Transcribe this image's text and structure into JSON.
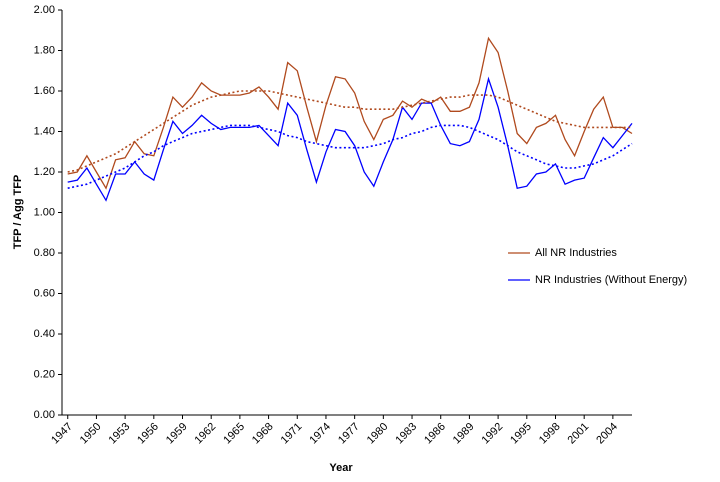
{
  "chart_data": {
    "type": "line",
    "x_label": "Year",
    "y_label": "TFP / Agg TFP",
    "x": [
      1947,
      1948,
      1949,
      1950,
      1951,
      1952,
      1953,
      1954,
      1955,
      1956,
      1957,
      1958,
      1959,
      1960,
      1961,
      1962,
      1963,
      1964,
      1965,
      1966,
      1967,
      1968,
      1969,
      1970,
      1971,
      1972,
      1973,
      1974,
      1975,
      1976,
      1977,
      1978,
      1979,
      1980,
      1981,
      1982,
      1983,
      1984,
      1985,
      1986,
      1987,
      1988,
      1989,
      1990,
      1991,
      1992,
      1993,
      1994,
      1995,
      1996,
      1997,
      1998,
      1999,
      2000,
      2001,
      2002,
      2003,
      2004,
      2005,
      2006
    ],
    "series": [
      {
        "name": "All NR Industries",
        "color": "#b04a1e",
        "style": "solid",
        "values": [
          1.19,
          1.2,
          1.28,
          1.2,
          1.12,
          1.26,
          1.27,
          1.35,
          1.29,
          1.28,
          1.42,
          1.57,
          1.52,
          1.57,
          1.64,
          1.6,
          1.58,
          1.58,
          1.58,
          1.59,
          1.62,
          1.57,
          1.51,
          1.74,
          1.7,
          1.52,
          1.35,
          1.53,
          1.67,
          1.66,
          1.59,
          1.45,
          1.36,
          1.46,
          1.48,
          1.55,
          1.52,
          1.56,
          1.54,
          1.57,
          1.5,
          1.5,
          1.52,
          1.64,
          1.86,
          1.79,
          1.6,
          1.39,
          1.34,
          1.42,
          1.44,
          1.48,
          1.36,
          1.28,
          1.4,
          1.51,
          1.57,
          1.42,
          1.42,
          1.39
        ]
      },
      {
        "name": "NR Industries (Without Energy)",
        "color": "#0000ff",
        "style": "solid",
        "values": [
          1.15,
          1.16,
          1.22,
          1.14,
          1.06,
          1.19,
          1.19,
          1.25,
          1.19,
          1.16,
          1.31,
          1.45,
          1.39,
          1.43,
          1.48,
          1.44,
          1.41,
          1.42,
          1.42,
          1.42,
          1.43,
          1.38,
          1.33,
          1.54,
          1.48,
          1.31,
          1.15,
          1.3,
          1.41,
          1.4,
          1.33,
          1.2,
          1.13,
          1.25,
          1.36,
          1.52,
          1.46,
          1.54,
          1.54,
          1.43,
          1.34,
          1.33,
          1.35,
          1.46,
          1.66,
          1.52,
          1.33,
          1.12,
          1.13,
          1.19,
          1.2,
          1.24,
          1.14,
          1.16,
          1.17,
          1.27,
          1.37,
          1.32,
          1.38,
          1.44
        ]
      },
      {
        "color": "#b04a1e",
        "style": "dotted",
        "values": [
          1.2,
          1.21,
          1.23,
          1.25,
          1.27,
          1.29,
          1.32,
          1.35,
          1.38,
          1.41,
          1.44,
          1.47,
          1.5,
          1.53,
          1.55,
          1.57,
          1.58,
          1.59,
          1.6,
          1.6,
          1.6,
          1.6,
          1.59,
          1.58,
          1.57,
          1.56,
          1.55,
          1.54,
          1.53,
          1.52,
          1.52,
          1.51,
          1.51,
          1.51,
          1.51,
          1.52,
          1.53,
          1.54,
          1.55,
          1.56,
          1.57,
          1.57,
          1.58,
          1.58,
          1.58,
          1.57,
          1.55,
          1.53,
          1.51,
          1.49,
          1.47,
          1.45,
          1.44,
          1.43,
          1.42,
          1.42,
          1.42,
          1.42,
          1.42,
          1.42
        ]
      },
      {
        "color": "#0000ff",
        "style": "dotted",
        "values": [
          1.12,
          1.13,
          1.14,
          1.16,
          1.18,
          1.2,
          1.22,
          1.25,
          1.28,
          1.3,
          1.33,
          1.35,
          1.37,
          1.39,
          1.4,
          1.41,
          1.42,
          1.43,
          1.43,
          1.43,
          1.42,
          1.41,
          1.4,
          1.38,
          1.37,
          1.35,
          1.34,
          1.33,
          1.32,
          1.32,
          1.32,
          1.32,
          1.33,
          1.34,
          1.36,
          1.37,
          1.39,
          1.4,
          1.42,
          1.43,
          1.43,
          1.43,
          1.42,
          1.4,
          1.38,
          1.36,
          1.33,
          1.3,
          1.28,
          1.26,
          1.24,
          1.23,
          1.22,
          1.22,
          1.23,
          1.24,
          1.26,
          1.28,
          1.31,
          1.34
        ]
      }
    ],
    "xlim": [
      1946.4,
      2006
    ],
    "xticks": [
      1947,
      1950,
      1953,
      1956,
      1959,
      1962,
      1965,
      1968,
      1971,
      1974,
      1977,
      1980,
      1983,
      1986,
      1989,
      1992,
      1995,
      1998,
      2001,
      2004
    ],
    "ylim": [
      0,
      2
    ],
    "yticks": [
      {
        "value": 0,
        "label": "0.00"
      },
      {
        "value": 0.2,
        "label": "0.20"
      },
      {
        "value": 0.4,
        "label": "0.40"
      },
      {
        "value": 0.6,
        "label": "0.60"
      },
      {
        "value": 0.8,
        "label": "0.80"
      },
      {
        "value": 1,
        "label": "1.00"
      },
      {
        "value": 1.2,
        "label": "1.20"
      },
      {
        "value": 1.4,
        "label": "1.40"
      },
      {
        "value": 1.6,
        "label": "1.60"
      },
      {
        "value": 1.8,
        "label": "1.80"
      },
      {
        "value": 2,
        "label": "2.00"
      }
    ],
    "grid": false,
    "legend": "right"
  }
}
